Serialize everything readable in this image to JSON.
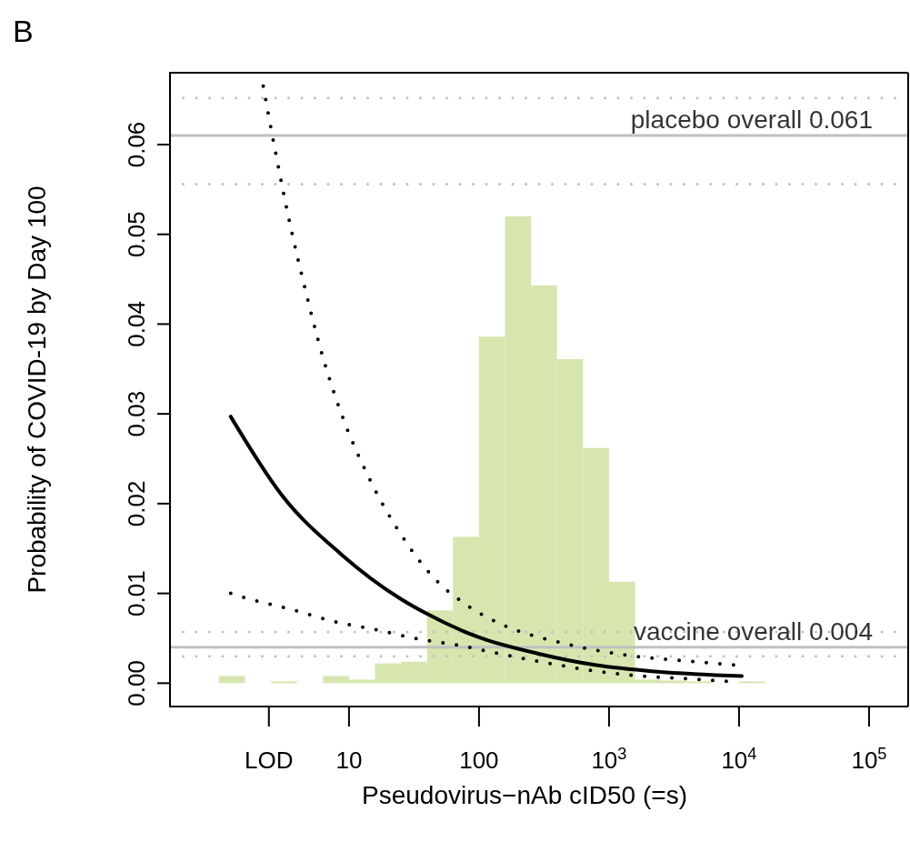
{
  "chart_data": {
    "type": "histogram",
    "title": "B",
    "xlabel": "Pseudovirus−nAb cID50 (=s)",
    "ylabel": "Probability of COVID-19 by Day 100",
    "bins": [
      1,
      1.585,
      2.512,
      3.981,
      6.31,
      10,
      15.85,
      25.12,
      39.81,
      63.1,
      100,
      158.5,
      251.2,
      398.1,
      631,
      1000,
      1585,
      2512,
      3981,
      6310,
      10000,
      15850
    ],
    "values": [
      0.0008,
      0,
      0.0002,
      0,
      0.0008,
      0.0004,
      0.0022,
      0.0024,
      0.0081,
      0.0163,
      0.0386,
      0.052,
      0.0443,
      0.0361,
      0.0262,
      0.0113,
      0.0004,
      0.0003,
      0.0002,
      null,
      0.0002
    ],
    "color": "#d6e6ae",
    "series": [
      {
        "type": "line",
        "color": "#000000",
        "line_style": "solid",
        "x": [
          1.23,
          3.06,
          8.8,
          24.9,
          37.7,
          100,
          282,
          800,
          2260,
          10500
        ],
        "values": [
          0.0297,
          0.0209,
          0.0143,
          0.0094,
          0.0079,
          0.0051,
          0.0033,
          0.002,
          0.0013,
          0.0008
        ]
      },
      {
        "type": "line",
        "color": "#000000",
        "line_style": "dotted",
        "x": [
          2.19,
          2.7,
          3.66,
          4.36,
          6.3,
          8.9,
          14,
          24.5,
          48.8,
          78.7,
          152,
          429,
          1400,
          4570,
          9800
        ],
        "values": [
          0.0665,
          0.0594,
          0.05,
          0.0453,
          0.0363,
          0.0297,
          0.0231,
          0.0168,
          0.0112,
          0.0088,
          0.0065,
          0.0045,
          0.0031,
          0.0024,
          0.002
        ]
      },
      {
        "type": "line",
        "color": "#000000",
        "line_style": "dotted",
        "x": [
          1.23,
          1.78,
          3.65,
          7.5,
          15.6,
          32,
          71,
          152,
          321,
          670,
          1445,
          3950,
          8260
        ],
        "values": [
          0.01,
          0.0093,
          0.0082,
          0.0069,
          0.006,
          0.005,
          0.0042,
          0.0032,
          0.0023,
          0.0015,
          0.0009,
          0.0005,
          0.0002
        ]
      }
    ],
    "ref_lines": [
      {
        "axis": "y",
        "value": 0.061,
        "label": "placebo overall 0.061",
        "color": "#c0c0c0",
        "line_style": "solid"
      },
      {
        "axis": "y",
        "value": 0.0652,
        "color": "#c0c0c0",
        "line_style": "dotted"
      },
      {
        "axis": "y",
        "value": 0.0556,
        "color": "#c0c0c0",
        "line_style": "dotted"
      },
      {
        "axis": "y",
        "value": 0.004,
        "label": "vaccine overall 0.004",
        "color": "#c0c0c0",
        "line_style": "solid"
      },
      {
        "axis": "y",
        "value": 0.0057,
        "color": "#c0c0c0",
        "line_style": "dotted"
      },
      {
        "axis": "y",
        "value": 0.003,
        "color": "#c0c0c0",
        "line_style": "dotted"
      }
    ],
    "log": "x",
    "xlim": [
      0.42,
      200000
    ],
    "ylim": [
      -0.0026,
      0.068
    ],
    "xticks": [
      {
        "value": 2.42,
        "label": "LOD"
      },
      10,
      100,
      {
        "value": 1000,
        "label": "10$^{3}$"
      },
      {
        "value": 10000,
        "label": "10$^{4}$"
      },
      {
        "value": 100000,
        "label": "10$^{5}$"
      }
    ],
    "yticks": [
      {
        "value": 0,
        "label": "0.00"
      },
      {
        "value": 0.01,
        "label": "0.01"
      },
      {
        "value": 0.02,
        "label": "0.02"
      },
      {
        "value": 0.03,
        "label": "0.03"
      },
      {
        "value": 0.04,
        "label": "0.04"
      },
      {
        "value": 0.05,
        "label": "0.05"
      },
      {
        "value": 0.06,
        "label": "0.06"
      }
    ],
    "grid": false
  }
}
